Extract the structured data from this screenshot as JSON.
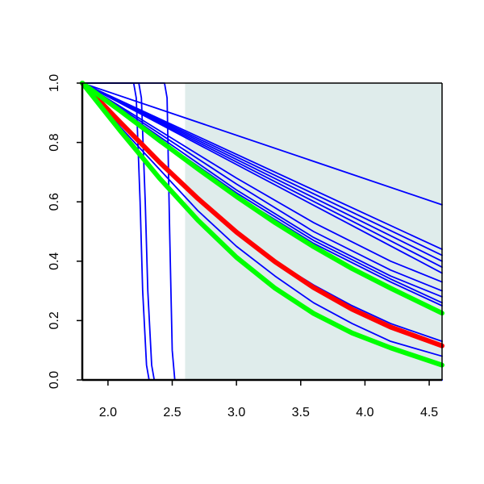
{
  "chart_data": {
    "type": "line",
    "title": "",
    "xlabel": "",
    "ylabel": "",
    "xlim": [
      1.8,
      4.6
    ],
    "ylim": [
      0.0,
      1.0
    ],
    "x_ticks": [
      2.0,
      2.5,
      3.0,
      3.5,
      4.0,
      4.5
    ],
    "x_tick_labels": [
      "2.0",
      "2.5",
      "3.0",
      "3.5",
      "4.0",
      "4.5"
    ],
    "y_ticks": [
      0.0,
      0.2,
      0.4,
      0.6,
      0.8,
      1.0
    ],
    "y_tick_labels": [
      "0.0",
      "0.2",
      "0.4",
      "0.6",
      "0.8",
      "1.0"
    ],
    "grid": false,
    "shaded_region": {
      "x_from": 2.6,
      "x_to": 4.6,
      "color": "#dfeceb"
    },
    "colors": {
      "blue": "#0000ff",
      "red": "#ff0000",
      "green": "#00ff00"
    },
    "series": [
      {
        "color": "#ff0000",
        "emphasis": "thick",
        "x": [
          1.8,
          2.1,
          2.4,
          2.7,
          3.0,
          3.3,
          3.6,
          3.9,
          4.2,
          4.6
        ],
        "y": [
          1.0,
          0.866,
          0.734,
          0.611,
          0.498,
          0.398,
          0.311,
          0.238,
          0.178,
          0.115
        ]
      },
      {
        "color": "#00ff00",
        "emphasis": "thick",
        "x": [
          1.8,
          2.1,
          2.4,
          2.7,
          3.0,
          3.3,
          3.6,
          3.9,
          4.2,
          4.6
        ],
        "y": [
          1.0,
          0.905,
          0.807,
          0.711,
          0.618,
          0.53,
          0.449,
          0.375,
          0.309,
          0.225
        ]
      },
      {
        "color": "#00ff00",
        "emphasis": "thick",
        "x": [
          1.8,
          2.1,
          2.4,
          2.7,
          3.0,
          3.3,
          3.6,
          3.9,
          4.2,
          4.6
        ],
        "y": [
          1.0,
          0.837,
          0.68,
          0.538,
          0.413,
          0.309,
          0.224,
          0.158,
          0.108,
          0.05
        ]
      },
      {
        "color": "#0000ff",
        "x": [
          1.8,
          4.6
        ],
        "y": [
          1.0,
          0.59
        ]
      },
      {
        "color": "#0000ff",
        "x": [
          1.8,
          4.6
        ],
        "y": [
          1.0,
          0.44
        ]
      },
      {
        "color": "#0000ff",
        "x": [
          1.8,
          4.6
        ],
        "y": [
          1.0,
          0.42
        ]
      },
      {
        "color": "#0000ff",
        "x": [
          1.8,
          4.6
        ],
        "y": [
          1.0,
          0.4
        ]
      },
      {
        "color": "#0000ff",
        "x": [
          1.8,
          4.6
        ],
        "y": [
          1.0,
          0.38
        ]
      },
      {
        "color": "#0000ff",
        "x": [
          1.8,
          4.6
        ],
        "y": [
          1.0,
          0.36
        ]
      },
      {
        "color": "#0000ff",
        "x": [
          1.8,
          2.4,
          3.0,
          3.6,
          4.2,
          4.6
        ],
        "y": [
          1.0,
          0.84,
          0.68,
          0.53,
          0.4,
          0.33
        ]
      },
      {
        "color": "#0000ff",
        "x": [
          1.8,
          2.4,
          3.0,
          3.6,
          4.2,
          4.6
        ],
        "y": [
          1.0,
          0.83,
          0.66,
          0.5,
          0.37,
          0.3
        ]
      },
      {
        "color": "#0000ff",
        "x": [
          1.8,
          2.4,
          3.0,
          3.6,
          4.2,
          4.6
        ],
        "y": [
          1.0,
          0.82,
          0.64,
          0.48,
          0.35,
          0.28
        ]
      },
      {
        "color": "#0000ff",
        "x": [
          1.8,
          2.4,
          3.0,
          3.6,
          4.2,
          4.6
        ],
        "y": [
          1.0,
          0.81,
          0.63,
          0.47,
          0.34,
          0.26
        ]
      },
      {
        "color": "#0000ff",
        "x": [
          1.8,
          2.4,
          3.0,
          3.6,
          4.2,
          4.6
        ],
        "y": [
          1.0,
          0.8,
          0.62,
          0.46,
          0.33,
          0.25
        ]
      },
      {
        "color": "#0000ff",
        "x": [
          1.8,
          2.1,
          2.4,
          2.7,
          3.0,
          3.3,
          3.6,
          3.9,
          4.2,
          4.6
        ],
        "y": [
          1.0,
          0.86,
          0.73,
          0.61,
          0.5,
          0.4,
          0.32,
          0.25,
          0.19,
          0.13
        ]
      },
      {
        "color": "#0000ff",
        "x": [
          1.8,
          2.1,
          2.4,
          2.7,
          3.0,
          3.3,
          3.6,
          3.9,
          4.2,
          4.6
        ],
        "y": [
          1.0,
          0.85,
          0.71,
          0.57,
          0.45,
          0.35,
          0.26,
          0.19,
          0.13,
          0.08
        ]
      },
      {
        "color": "#0000ff",
        "x": [
          1.8,
          2.2,
          2.22,
          2.25,
          2.27,
          2.3,
          2.32,
          4.6
        ],
        "y": [
          1.0,
          1.0,
          0.95,
          0.6,
          0.3,
          0.05,
          0.0,
          0.0
        ]
      },
      {
        "color": "#0000ff",
        "x": [
          1.8,
          2.24,
          2.26,
          2.29,
          2.31,
          2.34,
          2.36,
          4.6
        ],
        "y": [
          1.0,
          1.0,
          0.95,
          0.6,
          0.3,
          0.05,
          0.0,
          0.0
        ]
      },
      {
        "color": "#0000ff",
        "x": [
          1.8,
          2.44,
          2.46,
          2.48,
          2.5,
          2.52,
          4.6
        ],
        "y": [
          1.0,
          1.0,
          0.95,
          0.5,
          0.1,
          0.0,
          0.0
        ]
      }
    ]
  }
}
